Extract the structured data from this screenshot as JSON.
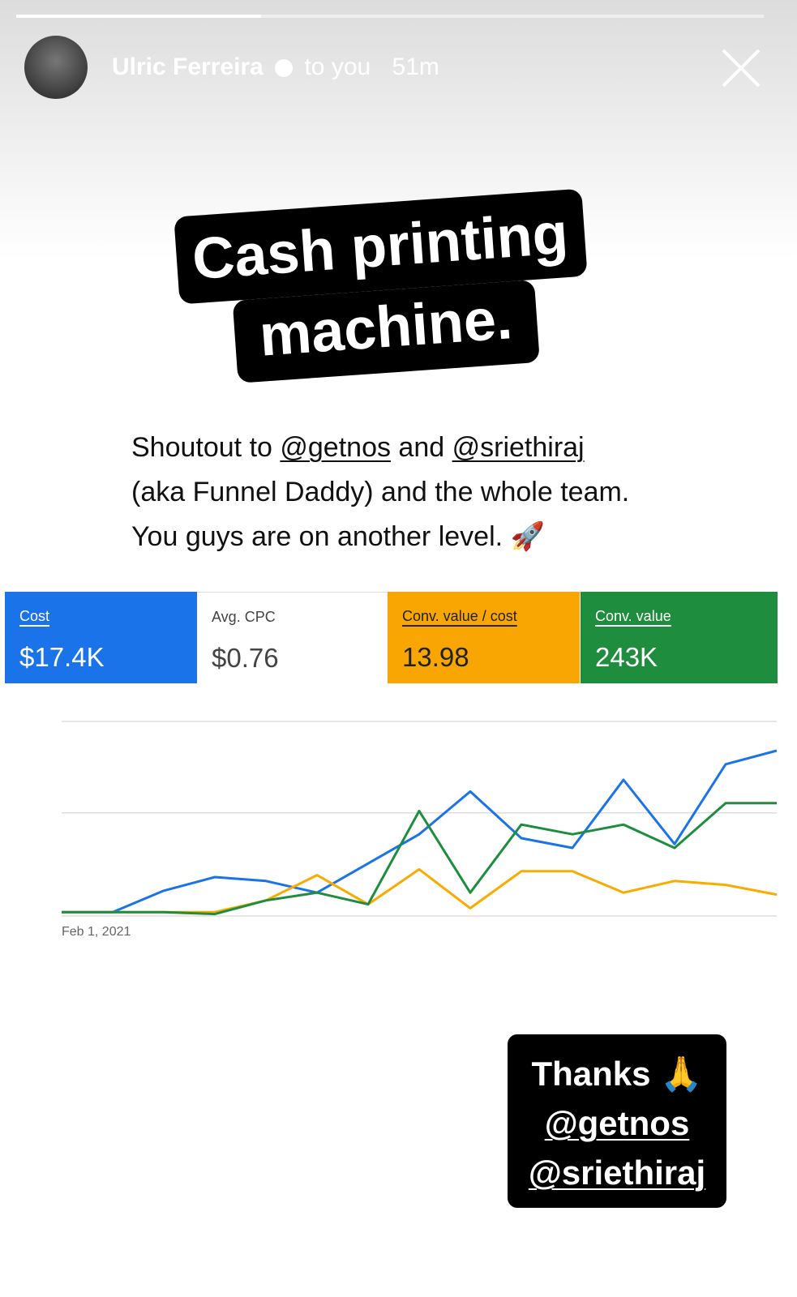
{
  "header": {
    "name": "Ulric Ferreira",
    "audience": "to you",
    "time": "51m"
  },
  "sticker": {
    "lines": [
      "Cash printing",
      "machine."
    ]
  },
  "caption": {
    "line1": [
      "Shoutout to ",
      "@getnos",
      " and ",
      "@sriethiraj"
    ],
    "line2": "(aka Funnel Daddy) and the whole team.",
    "line3": "You guys are on another level. 🚀"
  },
  "metrics": [
    {
      "label": "Cost",
      "value": "$17.4K"
    },
    {
      "label": "Avg. CPC",
      "value": "$0.76"
    },
    {
      "label": "Conv. value / cost",
      "value": "13.98"
    },
    {
      "label": "Conv. value",
      "value": "243K"
    }
  ],
  "chart_data": {
    "type": "line",
    "categories": [
      "Feb 1, 2021",
      null,
      null,
      null,
      null,
      null,
      null,
      null,
      null,
      null,
      null,
      null,
      null,
      null,
      null
    ],
    "series": [
      {
        "color": "#1a73e8",
        "values": [
          2,
          2,
          13,
          20,
          18,
          12,
          27,
          42,
          64,
          40,
          35,
          70,
          37,
          78,
          85
        ]
      },
      {
        "color": "#f9ab00",
        "values": [
          2,
          2,
          2,
          2,
          8,
          21,
          6,
          24,
          4,
          23,
          23,
          12,
          18,
          16,
          11
        ]
      },
      {
        "color": "#1e8e3e",
        "values": [
          2,
          2,
          2,
          1,
          8,
          12,
          6,
          54,
          12,
          47,
          42,
          47,
          35,
          58,
          58
        ]
      }
    ],
    "ylim": [
      0,
      100
    ],
    "yticks": [
      0,
      53,
      100
    ],
    "grid": true
  },
  "thanks": [
    "Thanks 🙏",
    "@getnos",
    "@sriethiraj"
  ]
}
